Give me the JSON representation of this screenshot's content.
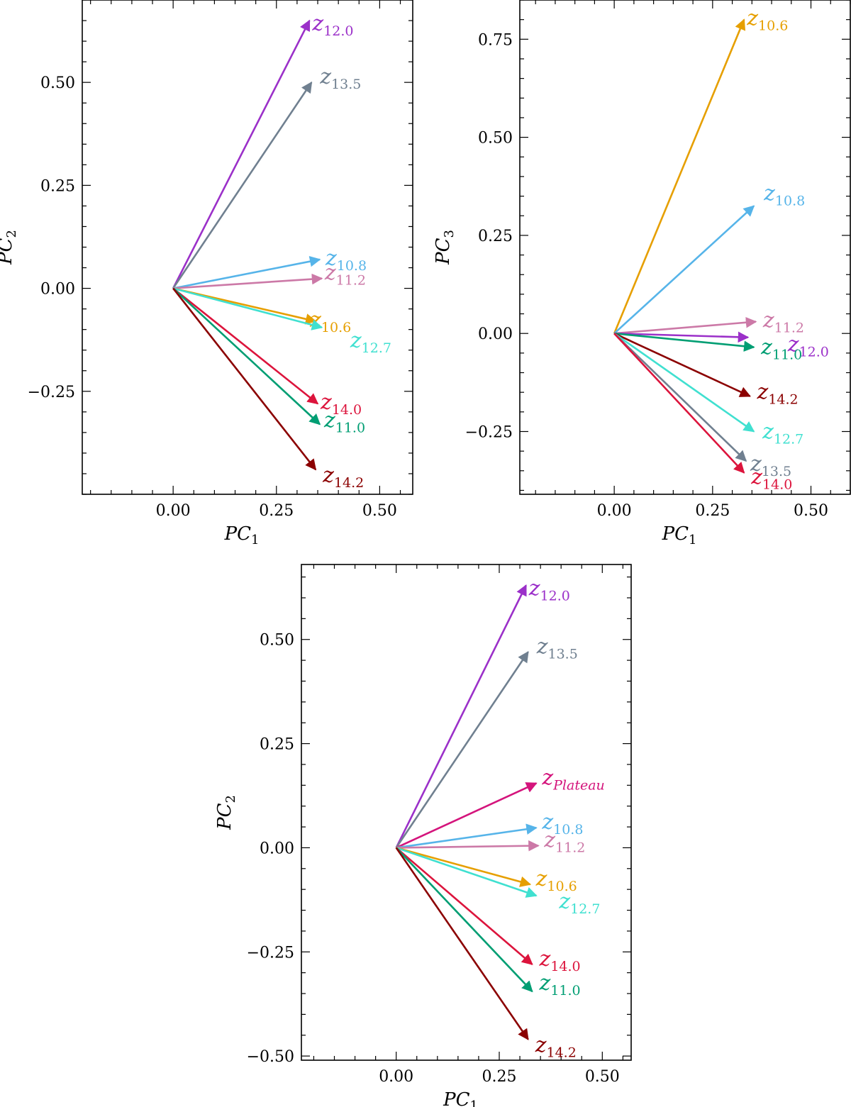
{
  "colors": {
    "z10.6": "#E69F00",
    "z10.8": "#56B4E9",
    "z11.0": "#009E73",
    "z11.2": "#CC79A7",
    "z12.0": "#9B30C9",
    "z12.7": "#40E0D0",
    "z13.5": "#708090",
    "z14.0": "#DC143C",
    "z14.2": "#8B0000",
    "zPlateau": "#D4147C"
  },
  "chart_data": [
    {
      "type": "biplot",
      "panel": "top-left",
      "xlabel": "PC",
      "xlabel_sub": "1",
      "ylabel": "PC",
      "ylabel_sub": "2",
      "xlim": [
        -0.22,
        0.58
      ],
      "ylim": [
        -0.5,
        0.7
      ],
      "xticks": [
        "0.00",
        "0.25",
        "0.50"
      ],
      "yticks": [
        "−0.25",
        "0.00",
        "0.25",
        "0.50"
      ],
      "vectors": [
        {
          "key": "z12.0",
          "base": "z",
          "sub": "12.0",
          "x": 0.33,
          "y": 0.65
        },
        {
          "key": "z13.5",
          "base": "z",
          "sub": "13.5",
          "x": 0.335,
          "y": 0.5
        },
        {
          "key": "z10.8",
          "base": "z",
          "sub": "10.8",
          "x": 0.355,
          "y": 0.07
        },
        {
          "key": "z11.2",
          "base": "z",
          "sub": "11.2",
          "x": 0.36,
          "y": 0.024
        },
        {
          "key": "z10.6",
          "base": "z",
          "sub": "10.6",
          "x": 0.345,
          "y": -0.08
        },
        {
          "key": "z12.7",
          "base": "z",
          "sub": "12.7",
          "x": 0.36,
          "y": -0.095
        },
        {
          "key": "z14.0",
          "base": "z",
          "sub": "14.0",
          "x": 0.35,
          "y": -0.28
        },
        {
          "key": "z11.0",
          "base": "z",
          "sub": "11.0",
          "x": 0.355,
          "y": -0.33
        },
        {
          "key": "z14.2",
          "base": "z",
          "sub": "14.2",
          "x": 0.345,
          "y": -0.44
        }
      ]
    },
    {
      "type": "biplot",
      "panel": "top-right",
      "xlabel": "PC",
      "xlabel_sub": "1",
      "ylabel": "PC",
      "ylabel_sub": "3",
      "xlim": [
        -0.24,
        0.6
      ],
      "ylim": [
        -0.41,
        0.85
      ],
      "xticks": [
        "0.00",
        "0.25",
        "0.50"
      ],
      "yticks": [
        "−0.25",
        "0.00",
        "0.25",
        "0.50",
        "0.75"
      ],
      "vectors": [
        {
          "key": "z10.6",
          "base": "z",
          "sub": "10.6",
          "x": 0.33,
          "y": 0.8
        },
        {
          "key": "z10.8",
          "base": "z",
          "sub": "10.8",
          "x": 0.355,
          "y": 0.325
        },
        {
          "key": "z11.2",
          "base": "z",
          "sub": "11.2",
          "x": 0.36,
          "y": 0.03
        },
        {
          "key": "z12.0",
          "base": "z",
          "sub": "12.0",
          "x": 0.34,
          "y": -0.01
        },
        {
          "key": "z11.0",
          "base": "z",
          "sub": "11.0",
          "x": 0.355,
          "y": -0.035
        },
        {
          "key": "z14.2",
          "base": "z",
          "sub": "14.2",
          "x": 0.345,
          "y": -0.16
        },
        {
          "key": "z12.7",
          "base": "z",
          "sub": "12.7",
          "x": 0.355,
          "y": -0.25
        },
        {
          "key": "z13.5",
          "base": "z",
          "sub": "13.5",
          "x": 0.335,
          "y": -0.325
        },
        {
          "key": "z14.0",
          "base": "z",
          "sub": "14.0",
          "x": 0.33,
          "y": -0.355
        }
      ]
    },
    {
      "type": "biplot",
      "panel": "bottom",
      "xlabel": "PC",
      "xlabel_sub": "1",
      "ylabel": "PC",
      "ylabel_sub": "2",
      "xlim": [
        -0.23,
        0.57
      ],
      "ylim": [
        -0.51,
        0.68
      ],
      "xticks": [
        "0.00",
        "0.25",
        "0.50"
      ],
      "yticks": [
        "−0.50",
        "−0.25",
        "0.00",
        "0.25",
        "0.50"
      ],
      "vectors": [
        {
          "key": "z12.0",
          "base": "z",
          "sub": "12.0",
          "x": 0.315,
          "y": 0.63
        },
        {
          "key": "z13.5",
          "base": "z",
          "sub": "13.5",
          "x": 0.32,
          "y": 0.47
        },
        {
          "key": "zPlateau",
          "base": "z",
          "sub": "Plateau",
          "x": 0.34,
          "y": 0.155
        },
        {
          "key": "z10.8",
          "base": "z",
          "sub": "10.8",
          "x": 0.34,
          "y": 0.048
        },
        {
          "key": "z11.2",
          "base": "z",
          "sub": "11.2",
          "x": 0.345,
          "y": 0.005
        },
        {
          "key": "z10.6",
          "base": "z",
          "sub": "10.6",
          "x": 0.325,
          "y": -0.088
        },
        {
          "key": "z12.7",
          "base": "z",
          "sub": "12.7",
          "x": 0.34,
          "y": -0.115
        },
        {
          "key": "z14.0",
          "base": "z",
          "sub": "14.0",
          "x": 0.33,
          "y": -0.28
        },
        {
          "key": "z11.0",
          "base": "z",
          "sub": "11.0",
          "x": 0.33,
          "y": -0.345
        },
        {
          "key": "z14.2",
          "base": "z",
          "sub": "14.2",
          "x": 0.32,
          "y": -0.46
        }
      ]
    }
  ]
}
